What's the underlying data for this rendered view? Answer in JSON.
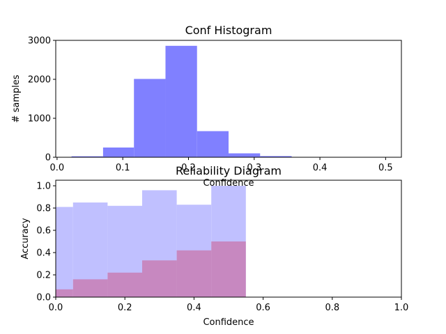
{
  "colors": {
    "hist_bar": "#8080ff",
    "gap_bar": "#c0c0ff",
    "acc_bar": "#cc5a8c",
    "axis": "#000000",
    "background": "#ffffff"
  },
  "chart_data": [
    {
      "type": "bar",
      "title": "Conf Histogram",
      "xlabel": "Confidence",
      "ylabel": "# samples",
      "xlim": [
        -0.002,
        0.524
      ],
      "ylim": [
        0,
        3000
      ],
      "xticks": [
        0.0,
        0.1,
        0.2,
        0.3,
        0.4,
        0.5
      ],
      "xtick_labels": [
        "0.0",
        "0.1",
        "0.2",
        "0.3",
        "0.4",
        "0.5"
      ],
      "yticks": [
        0,
        1000,
        2000,
        3000
      ],
      "ytick_labels": [
        "0",
        "1000",
        "2000",
        "3000"
      ],
      "bins": [
        {
          "x0": 0.022,
          "x1": 0.07,
          "count": 25
        },
        {
          "x0": 0.07,
          "x1": 0.117,
          "count": 250
        },
        {
          "x0": 0.117,
          "x1": 0.165,
          "count": 2010
        },
        {
          "x0": 0.165,
          "x1": 0.213,
          "count": 2860
        },
        {
          "x0": 0.213,
          "x1": 0.261,
          "count": 670
        },
        {
          "x0": 0.261,
          "x1": 0.309,
          "count": 100
        },
        {
          "x0": 0.309,
          "x1": 0.357,
          "count": 30
        },
        {
          "x0": 0.357,
          "x1": 0.404,
          "count": 8
        },
        {
          "x0": 0.404,
          "x1": 0.452,
          "count": 4
        },
        {
          "x0": 0.452,
          "x1": 0.5,
          "count": 3
        }
      ],
      "grid": false
    },
    {
      "type": "bar",
      "title": "Reliability Diagram",
      "xlabel": "Confidence",
      "ylabel": "Accuracy",
      "xlim": [
        0,
        1
      ],
      "ylim": [
        0,
        1.05
      ],
      "xticks": [
        0.0,
        0.2,
        0.4,
        0.6,
        0.8,
        1.0
      ],
      "xtick_labels": [
        "0.0",
        "0.2",
        "0.4",
        "0.6",
        "0.8",
        "1.0"
      ],
      "yticks": [
        0.0,
        0.2,
        0.4,
        0.6,
        0.8,
        1.0
      ],
      "ytick_labels": [
        "0.0",
        "0.2",
        "0.4",
        "0.6",
        "0.8",
        "1.0"
      ],
      "bin_edges": [
        0.0,
        0.05,
        0.15,
        0.25,
        0.35,
        0.45,
        0.55
      ],
      "gap_values": [
        0.81,
        0.85,
        0.82,
        0.96,
        0.83,
        1.0
      ],
      "acc_values": [
        0.07,
        0.16,
        0.22,
        0.33,
        0.42,
        0.5
      ],
      "grid": false
    }
  ]
}
